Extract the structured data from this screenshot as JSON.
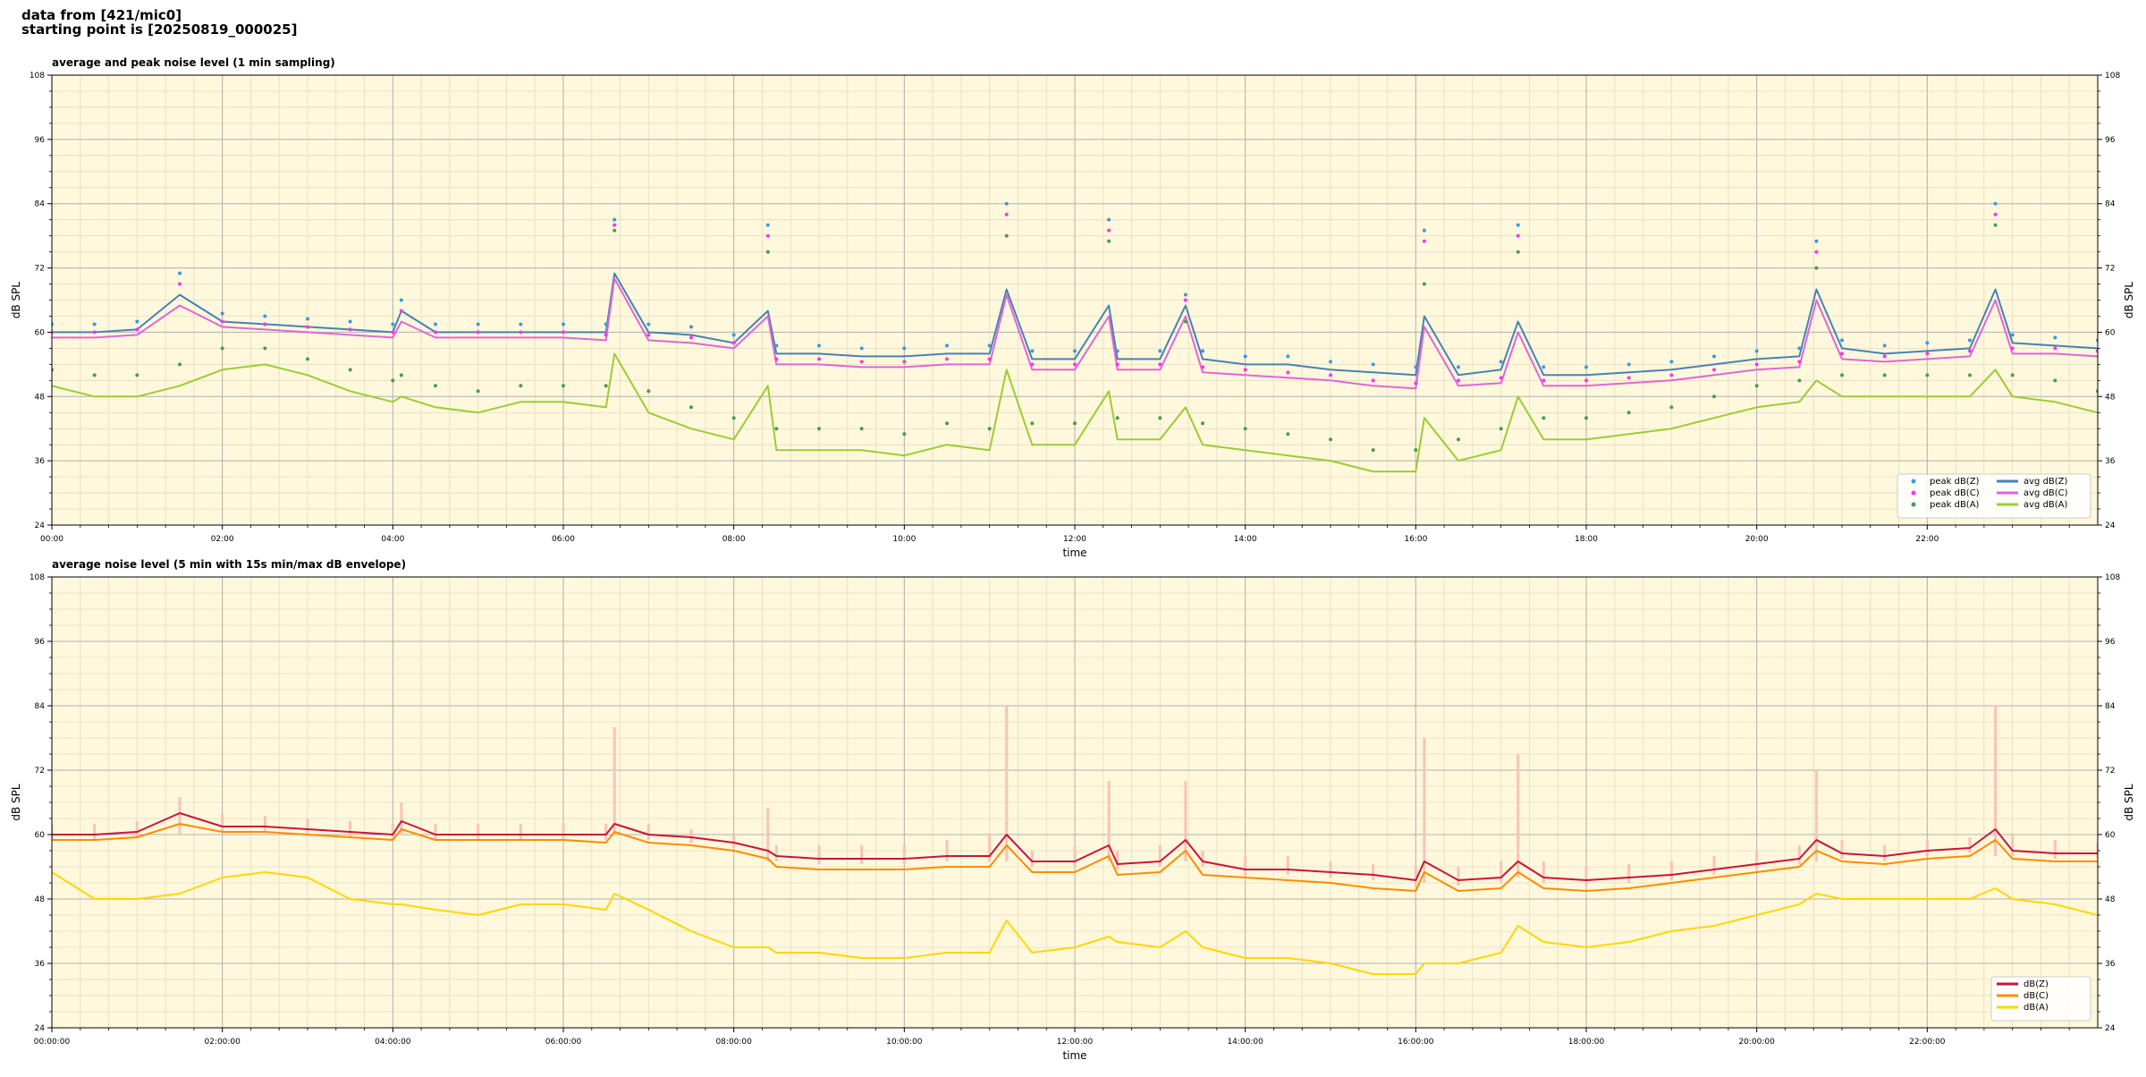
{
  "header": {
    "line1": "data from [421/mic0]",
    "line2": "starting point is [20250819_000025]"
  },
  "chart_data": [
    {
      "type": "line",
      "title": "average and peak noise level (1 min sampling)",
      "xlabel": "time",
      "ylabel": "dB SPL",
      "xlim": [
        0,
        24
      ],
      "ylim": [
        24,
        108
      ],
      "xticks": [
        {
          "value": 0,
          "label": "00:00"
        },
        {
          "value": 2,
          "label": "02:00"
        },
        {
          "value": 4,
          "label": "04:00"
        },
        {
          "value": 6,
          "label": "06:00"
        },
        {
          "value": 8,
          "label": "08:00"
        },
        {
          "value": 10,
          "label": "10:00"
        },
        {
          "value": 12,
          "label": "12:00"
        },
        {
          "value": 14,
          "label": "14:00"
        },
        {
          "value": 16,
          "label": "16:00"
        },
        {
          "value": 18,
          "label": "18:00"
        },
        {
          "value": 20,
          "label": "20:00"
        },
        {
          "value": 22,
          "label": "22:00"
        }
      ],
      "yticks": [
        24,
        36,
        48,
        60,
        72,
        84,
        96,
        108
      ],
      "grid": true,
      "minor_grid": true,
      "legend": "lower right",
      "legend_columns": 2,
      "background": "#fff8dc",
      "x": [
        0,
        0.5,
        1,
        1.5,
        2,
        2.5,
        3,
        3.5,
        4,
        4.1,
        4.5,
        5,
        5.5,
        6,
        6.5,
        6.6,
        7,
        7.5,
        8,
        8.4,
        8.5,
        9,
        9.5,
        10,
        10.5,
        11,
        11.2,
        11.5,
        12,
        12.4,
        12.5,
        13,
        13.3,
        13.5,
        14,
        14.5,
        15,
        15.5,
        16,
        16.1,
        16.5,
        17,
        17.2,
        17.5,
        18,
        18.5,
        19,
        19.5,
        20,
        20.5,
        20.7,
        21,
        21.5,
        22,
        22.5,
        22.8,
        23,
        23.5,
        24
      ],
      "series": [
        {
          "name": "peak dB(Z)",
          "kind": "scatter",
          "color": "#3a9ad9",
          "values": [
            61.5,
            61.5,
            62,
            71,
            63.5,
            63,
            62.5,
            62,
            61.5,
            66,
            61.5,
            61.5,
            61.5,
            61.5,
            61.5,
            81,
            61.5,
            61,
            59.5,
            80,
            57.5,
            57.5,
            57,
            57,
            57.5,
            57.5,
            84,
            56.5,
            56.5,
            81,
            56.5,
            56.5,
            67,
            56.5,
            55.5,
            55.5,
            54.5,
            54,
            53.5,
            79,
            53.5,
            54.5,
            80,
            53.5,
            53.5,
            54,
            54.5,
            55.5,
            56.5,
            57,
            77,
            58.5,
            57.5,
            58,
            58.5,
            84,
            59.5,
            59,
            58.5
          ]
        },
        {
          "name": "peak dB(C)",
          "kind": "scatter",
          "color": "#ff33ee",
          "values": [
            60,
            60,
            60.5,
            69,
            62,
            61.5,
            61,
            60.5,
            60,
            64,
            60,
            60,
            60,
            60,
            59.5,
            80,
            59.5,
            59,
            58,
            78,
            55,
            55,
            54.5,
            54.5,
            55,
            55,
            82,
            54,
            54,
            79,
            54,
            54,
            66,
            53.5,
            53,
            52.5,
            52,
            51,
            50.5,
            77,
            51,
            51.5,
            78,
            51,
            51,
            51.5,
            52,
            53,
            54,
            54.5,
            75,
            56,
            55.5,
            56,
            56.5,
            82,
            57,
            57,
            56.5
          ]
        },
        {
          "name": "peak dB(A)",
          "kind": "scatter",
          "color": "#4c9a4c",
          "values": [
            53,
            52,
            52,
            54,
            57,
            57,
            55,
            53,
            51,
            52,
            50,
            49,
            50,
            50,
            50,
            79,
            49,
            46,
            44,
            75,
            42,
            42,
            42,
            41,
            43,
            42,
            78,
            43,
            43,
            77,
            44,
            44,
            62,
            43,
            42,
            41,
            40,
            38,
            38,
            69,
            40,
            42,
            75,
            44,
            44,
            45,
            46,
            48,
            50,
            51,
            72,
            52,
            52,
            52,
            52,
            80,
            52,
            51,
            49
          ]
        },
        {
          "name": "avg dB(Z)",
          "kind": "line",
          "color": "#4682b4",
          "values": [
            60,
            60,
            60.5,
            67,
            62,
            61.5,
            61,
            60.5,
            60,
            64,
            60,
            60,
            60,
            60,
            60,
            71,
            60,
            59.5,
            58,
            64,
            56,
            56,
            55.5,
            55.5,
            56,
            56,
            68,
            55,
            55,
            65,
            55,
            55,
            65,
            55,
            54,
            54,
            53,
            52.5,
            52,
            63,
            52,
            53,
            62,
            52,
            52,
            52.5,
            53,
            54,
            55,
            55.5,
            68,
            57,
            56,
            56.5,
            57,
            68,
            58,
            57.5,
            57
          ]
        },
        {
          "name": "avg dB(C)",
          "kind": "line",
          "color": "#e066d8",
          "values": [
            59,
            59,
            59.5,
            65,
            61,
            60.5,
            60,
            59.5,
            59,
            62,
            59,
            59,
            59,
            59,
            58.5,
            70,
            58.5,
            58,
            57,
            63,
            54,
            54,
            53.5,
            53.5,
            54,
            54,
            67,
            53,
            53,
            63,
            53,
            53,
            63,
            52.5,
            52,
            51.5,
            51,
            50,
            49.5,
            61,
            50,
            50.5,
            60,
            50,
            50,
            50.5,
            51,
            52,
            53,
            53.5,
            66,
            55,
            54.5,
            55,
            55.5,
            66,
            56,
            56,
            55.5
          ]
        },
        {
          "name": "avg dB(A)",
          "kind": "line",
          "color": "#9acd32",
          "values": [
            50,
            48,
            48,
            50,
            53,
            54,
            52,
            49,
            47,
            48,
            46,
            45,
            47,
            47,
            46,
            56,
            45,
            42,
            40,
            50,
            38,
            38,
            38,
            37,
            39,
            38,
            53,
            39,
            39,
            49,
            40,
            40,
            46,
            39,
            38,
            37,
            36,
            34,
            34,
            44,
            36,
            38,
            48,
            40,
            40,
            41,
            42,
            44,
            46,
            47,
            51,
            48,
            48,
            48,
            48,
            53,
            48,
            47,
            45
          ]
        }
      ]
    },
    {
      "type": "line",
      "title": "average noise level (5 min with 15s min/max dB envelope)",
      "xlabel": "time",
      "ylabel": "dB SPL",
      "xlim": [
        0,
        24
      ],
      "ylim": [
        24,
        108
      ],
      "xticks": [
        {
          "value": 0,
          "label": "00:00:00"
        },
        {
          "value": 2,
          "label": "02:00:00"
        },
        {
          "value": 4,
          "label": "04:00:00"
        },
        {
          "value": 6,
          "label": "06:00:00"
        },
        {
          "value": 8,
          "label": "08:00:00"
        },
        {
          "value": 10,
          "label": "10:00:00"
        },
        {
          "value": 12,
          "label": "12:00:00"
        },
        {
          "value": 14,
          "label": "14:00:00"
        },
        {
          "value": 16,
          "label": "16:00:00"
        },
        {
          "value": 18,
          "label": "18:00:00"
        },
        {
          "value": 20,
          "label": "20:00:00"
        },
        {
          "value": 22,
          "label": "22:00:00"
        }
      ],
      "yticks": [
        24,
        36,
        48,
        60,
        72,
        84,
        96,
        108
      ],
      "grid": true,
      "minor_grid": true,
      "legend": "lower right",
      "legend_columns": 1,
      "background": "#fff8dc",
      "x": [
        0,
        0.5,
        1,
        1.5,
        2,
        2.5,
        3,
        3.5,
        4,
        4.1,
        4.5,
        5,
        5.5,
        6,
        6.5,
        6.6,
        7,
        7.5,
        8,
        8.4,
        8.5,
        9,
        9.5,
        10,
        10.5,
        11,
        11.2,
        11.5,
        12,
        12.4,
        12.5,
        13,
        13.3,
        13.5,
        14,
        14.5,
        15,
        15.5,
        16,
        16.1,
        16.5,
        17,
        17.2,
        17.5,
        18,
        18.5,
        19,
        19.5,
        20,
        20.5,
        20.7,
        21,
        21.5,
        22,
        22.5,
        22.8,
        23,
        23.5,
        24
      ],
      "envelope": {
        "color": "#f6c4b6",
        "upper": [
          62,
          62,
          62.5,
          67,
          64,
          63.5,
          63,
          62.5,
          62,
          66,
          62,
          62,
          62,
          62,
          62,
          80,
          62,
          61,
          60,
          65,
          58,
          58,
          58,
          58,
          59,
          60,
          84,
          57,
          58,
          70,
          57,
          58,
          70,
          57,
          56,
          56,
          55,
          54.5,
          54,
          78,
          54,
          55,
          75,
          55,
          54,
          54.5,
          55,
          56,
          57,
          58,
          72,
          59,
          58,
          59,
          59.5,
          84,
          60,
          59,
          58.5
        ],
        "lower": [
          59,
          59,
          59.5,
          60,
          60.5,
          60.5,
          60,
          59.5,
          59,
          60,
          59,
          59,
          59,
          59,
          59,
          60,
          59,
          58.5,
          57.5,
          55,
          55,
          54.5,
          54.5,
          54.5,
          55,
          55,
          55,
          54,
          54,
          55,
          53.5,
          54,
          55,
          54,
          52.5,
          52.5,
          52,
          51.5,
          50.5,
          51,
          50.5,
          51,
          52,
          51,
          50.5,
          51,
          51.5,
          52.5,
          53.5,
          54.5,
          55,
          55.5,
          55,
          56,
          56.5,
          56,
          56,
          55.5,
          55.5
        ]
      },
      "series": [
        {
          "name": "dB(Z)",
          "kind": "line",
          "color": "#c8143c",
          "values": [
            60,
            60,
            60.5,
            64,
            61.5,
            61.5,
            61,
            60.5,
            60,
            62.5,
            60,
            60,
            60,
            60,
            60,
            62,
            60,
            59.5,
            58.5,
            57,
            56,
            55.5,
            55.5,
            55.5,
            56,
            56,
            60,
            55,
            55,
            58,
            54.5,
            55,
            59,
            55,
            53.5,
            53.5,
            53,
            52.5,
            51.5,
            55,
            51.5,
            52,
            55,
            52,
            51.5,
            52,
            52.5,
            53.5,
            54.5,
            55.5,
            59,
            56.5,
            56,
            57,
            57.5,
            61,
            57,
            56.5,
            56.5
          ]
        },
        {
          "name": "dB(C)",
          "kind": "line",
          "color": "#ff8c00",
          "values": [
            59,
            59,
            59.5,
            62,
            60.5,
            60.5,
            60,
            59.5,
            59,
            61,
            59,
            59,
            59,
            59,
            58.5,
            60.5,
            58.5,
            58,
            57,
            55.5,
            54,
            53.5,
            53.5,
            53.5,
            54,
            54,
            58,
            53,
            53,
            56,
            52.5,
            53,
            57,
            52.5,
            52,
            51.5,
            51,
            50,
            49.5,
            53,
            49.5,
            50,
            53,
            50,
            49.5,
            50,
            51,
            52,
            53,
            54,
            57,
            55,
            54.5,
            55.5,
            56,
            59,
            55.5,
            55,
            55
          ]
        },
        {
          "name": "dB(A)",
          "kind": "line",
          "color": "#ffd700",
          "values": [
            53,
            48,
            48,
            49,
            52,
            53,
            52,
            48,
            47,
            47,
            46,
            45,
            47,
            47,
            46,
            49,
            46,
            42,
            39,
            39,
            38,
            38,
            37,
            37,
            38,
            38,
            44,
            38,
            39,
            41,
            40,
            39,
            42,
            39,
            37,
            37,
            36,
            34,
            34,
            36,
            36,
            38,
            43,
            40,
            39,
            40,
            42,
            43,
            45,
            47,
            49,
            48,
            48,
            48,
            48,
            50,
            48,
            47,
            45
          ]
        }
      ]
    }
  ]
}
